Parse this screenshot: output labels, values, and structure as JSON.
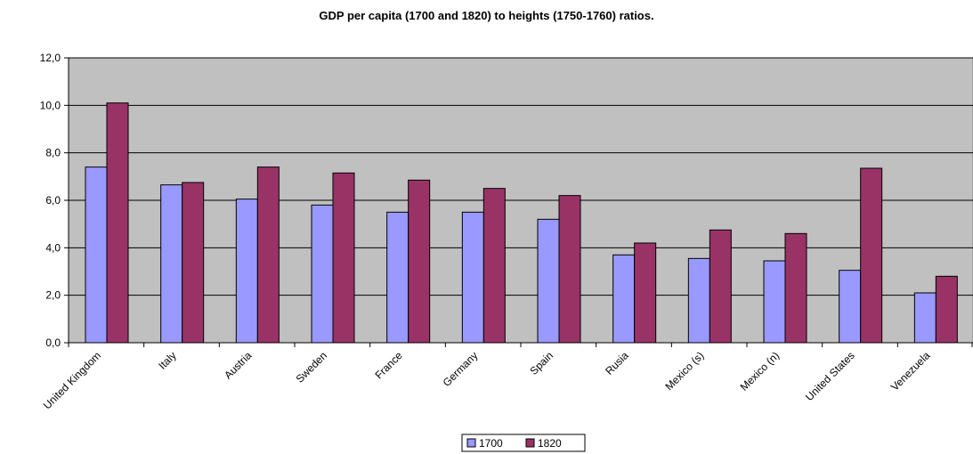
{
  "chart_data": {
    "type": "bar",
    "title": "GDP per capita (1700 and 1820) to heights (1750-1760) ratios.",
    "xlabel": "",
    "ylabel": "",
    "categories": [
      "United Kingdom",
      "Italy",
      "Austria",
      "Sweden",
      "France",
      "Germany",
      "Spain",
      "Rusia",
      "Mexico (s)",
      "Mexico (n)",
      "United States",
      "Venezuela"
    ],
    "series": [
      {
        "name": "1700",
        "color": "#9999ff",
        "values": [
          7.4,
          6.65,
          6.05,
          5.8,
          5.5,
          5.5,
          5.2,
          3.7,
          3.55,
          3.45,
          3.05,
          2.1
        ]
      },
      {
        "name": "1820",
        "color": "#993366",
        "values": [
          10.1,
          6.75,
          7.4,
          7.15,
          6.85,
          6.5,
          6.2,
          4.2,
          4.75,
          4.6,
          7.35,
          2.8
        ]
      }
    ],
    "ylim": [
      0,
      12
    ],
    "yticks": [
      "0,0",
      "2,0",
      "4,0",
      "6,0",
      "8,0",
      "10,0",
      "12,0"
    ],
    "ytick_values": [
      0,
      2,
      4,
      6,
      8,
      10,
      12
    ],
    "grid": true,
    "plot_background": "#c0c0c0",
    "legend": "bottom-center"
  }
}
